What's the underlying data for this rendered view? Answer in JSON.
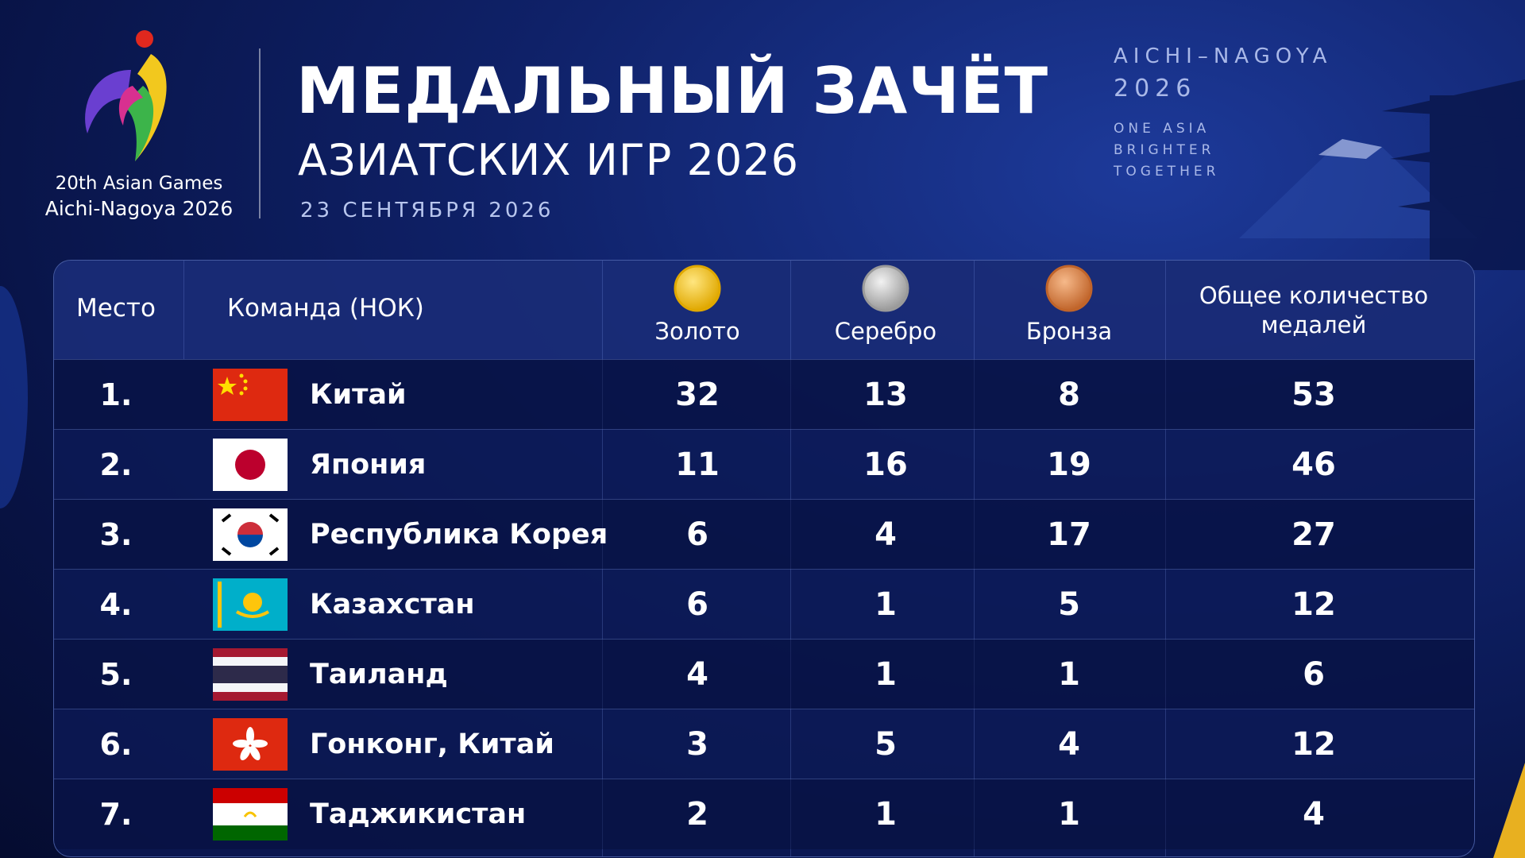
{
  "logo": {
    "line1": "20th Asian Games",
    "line2": "Aichi-Nagoya 2026"
  },
  "header": {
    "title": "МЕДАЛЬНЫЙ ЗАЧЁТ",
    "subtitle": "АЗИАТСКИХ ИГР 2026",
    "date": "23 СЕНТЯБРЯ 2026"
  },
  "tagline": {
    "city": "AICHI–NAGOYA",
    "year": "2026",
    "motto": [
      "ONE ASIA",
      "BRIGHTER",
      "TOGETHER"
    ]
  },
  "table": {
    "columns": [
      "Место",
      "Команда (НОК)",
      "Золото",
      "Серебро",
      "Бронза",
      "Общее количество медалей"
    ],
    "rows": [
      [
        "1.",
        "Китай",
        32,
        13,
        8,
        53
      ],
      [
        "2.",
        "Япония",
        11,
        16,
        19,
        46
      ],
      [
        "3.",
        "Республика Корея",
        6,
        4,
        17,
        27
      ],
      [
        "4.",
        "Казахстан",
        6,
        1,
        5,
        12
      ],
      [
        "5.",
        "Таиланд",
        4,
        1,
        1,
        6
      ],
      [
        "6.",
        "Гонконг, Китай",
        3,
        5,
        4,
        12
      ],
      [
        "7.",
        "Таджикистан",
        2,
        1,
        1,
        4
      ]
    ]
  }
}
